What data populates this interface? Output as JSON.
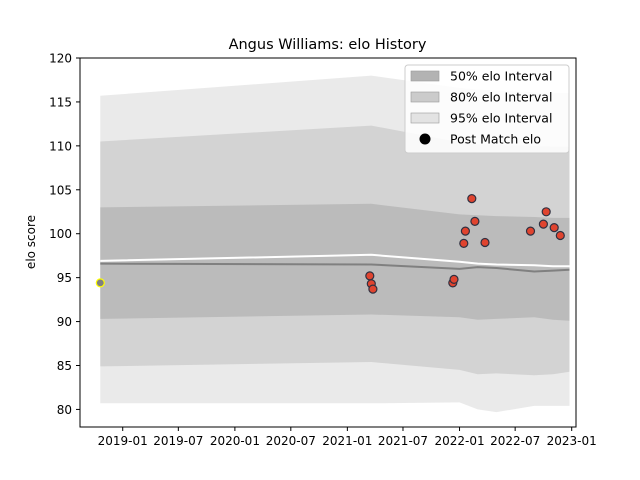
{
  "chart_data": {
    "type": "line",
    "title": "Angus Williams: elo History",
    "xlabel": "",
    "ylabel": "elo score",
    "xlim": [
      "2018-08-15",
      "2023-01-15"
    ],
    "ylim": [
      78,
      120
    ],
    "x_ticks": [
      "2019-01",
      "2019-07",
      "2020-01",
      "2020-07",
      "2021-01",
      "2021-07",
      "2022-01",
      "2022-07",
      "2023-01"
    ],
    "y_ticks": [
      80,
      85,
      90,
      95,
      100,
      105,
      110,
      115,
      120
    ],
    "grid": false,
    "legend_position": "top-right",
    "legend": [
      {
        "label": "50% elo Interval",
        "kind": "patch",
        "color": "#b3b3b3"
      },
      {
        "label": "80% elo Interval",
        "kind": "patch",
        "color": "#cbcbcb"
      },
      {
        "label": "95% elo Interval",
        "kind": "patch",
        "color": "#e3e3e3"
      },
      {
        "label": "Post Match elo",
        "kind": "marker",
        "color": "#000000"
      }
    ],
    "bands": {
      "x": [
        "2018-10-20",
        "2021-03-20",
        "2022-01-01",
        "2022-03-01",
        "2022-05-01",
        "2022-09-01",
        "2022-11-01",
        "2022-12-25"
      ],
      "p95_upper": [
        115.7,
        118.0,
        116.6,
        116.4,
        116.3,
        116.1,
        116.0,
        116.0
      ],
      "p80_upper": [
        110.5,
        112.3,
        110.4,
        110.2,
        110.1,
        110.0,
        109.9,
        109.9
      ],
      "p50_upper": [
        103.0,
        103.4,
        102.2,
        102.1,
        102.0,
        101.9,
        101.8,
        101.8
      ],
      "p50_lower": [
        90.3,
        90.8,
        90.5,
        90.2,
        90.3,
        90.5,
        90.2,
        90.1
      ],
      "p80_lower": [
        84.9,
        85.4,
        84.5,
        84.0,
        84.1,
        83.9,
        84.0,
        84.3
      ],
      "p95_lower": [
        80.7,
        80.7,
        80.8,
        80.0,
        79.7,
        80.4,
        80.4,
        80.4
      ]
    },
    "median_line": {
      "color": "#808080",
      "x": [
        "2018-10-20",
        "2021-03-20",
        "2022-01-01",
        "2022-03-01",
        "2022-05-01",
        "2022-09-01",
        "2022-11-01",
        "2022-12-25"
      ],
      "y": [
        96.6,
        96.5,
        96.0,
        96.2,
        96.1,
        95.7,
        95.8,
        95.9
      ]
    },
    "mean_line": {
      "color": "#ffffff",
      "x": [
        "2018-10-20",
        "2021-03-20",
        "2022-01-01",
        "2022-03-01",
        "2022-05-01",
        "2022-09-01",
        "2022-11-01",
        "2022-12-25"
      ],
      "y": [
        96.9,
        97.6,
        96.8,
        96.6,
        96.5,
        96.4,
        96.3,
        96.3
      ]
    },
    "series": [
      {
        "kind": "scatter",
        "color": "#e0442f",
        "edge": "#303040",
        "points": [
          {
            "x": "2021-03-15",
            "y": 95.2
          },
          {
            "x": "2021-03-20",
            "y": 94.3
          },
          {
            "x": "2021-03-25",
            "y": 93.7
          },
          {
            "x": "2021-12-10",
            "y": 94.4
          },
          {
            "x": "2021-12-14",
            "y": 94.8
          },
          {
            "x": "2022-01-15",
            "y": 98.9
          },
          {
            "x": "2022-01-20",
            "y": 100.3
          },
          {
            "x": "2022-02-10",
            "y": 104.0
          },
          {
            "x": "2022-02-20",
            "y": 101.4
          },
          {
            "x": "2022-03-25",
            "y": 99.0
          },
          {
            "x": "2022-08-20",
            "y": 100.3
          },
          {
            "x": "2022-10-01",
            "y": 101.1
          },
          {
            "x": "2022-10-10",
            "y": 102.5
          },
          {
            "x": "2022-11-05",
            "y": 100.7
          },
          {
            "x": "2022-11-25",
            "y": 99.8
          }
        ]
      },
      {
        "kind": "scatter",
        "color": "#808080",
        "edge": "#ffff00",
        "points": [
          {
            "x": "2018-10-20",
            "y": 94.4
          }
        ]
      }
    ]
  }
}
